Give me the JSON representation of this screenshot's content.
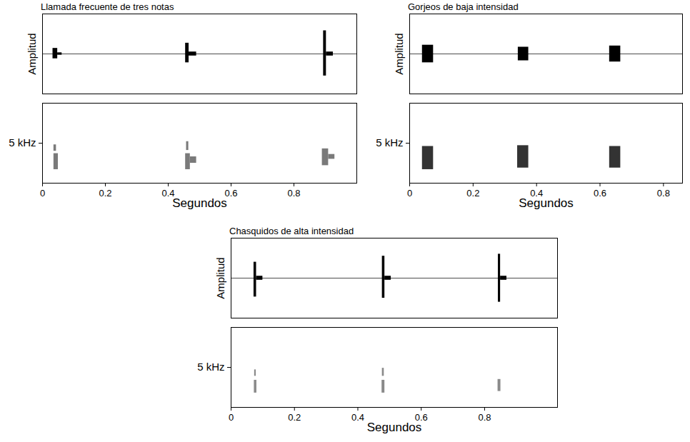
{
  "chart_data": [
    {
      "type": "waveform_spectrogram",
      "title": "Llamada frecuente de tres notas",
      "x_label": "Segundos",
      "xlim": [
        0,
        1.0
      ],
      "xticks": [
        0,
        0.2,
        0.4,
        0.6,
        0.8
      ],
      "waveform": {
        "y_label": "Amplitud",
        "ylim": [
          -1,
          1
        ],
        "tick_labels": false,
        "baseline": 0,
        "color": "#000000",
        "bursts": [
          {
            "start": 0.033,
            "end": 0.048,
            "max": 0.14,
            "min": -0.12
          },
          {
            "start": 0.048,
            "end": 0.062,
            "max": 0.03,
            "min": -0.03
          },
          {
            "start": 0.455,
            "end": 0.466,
            "max": 0.27,
            "min": -0.22
          },
          {
            "start": 0.466,
            "end": 0.49,
            "max": 0.05,
            "min": -0.05
          },
          {
            "start": 0.894,
            "end": 0.903,
            "max": 0.58,
            "min": -0.55
          },
          {
            "start": 0.903,
            "end": 0.925,
            "max": 0.05,
            "min": -0.05
          }
        ]
      },
      "spectrogram": {
        "ylim": [
          0,
          10
        ],
        "yticks": [
          {
            "value": 5,
            "label": "5 kHz"
          }
        ],
        "color": "#7a7a7a",
        "blobs": [
          {
            "start": 0.036,
            "end": 0.05,
            "freq_low": 1.7,
            "freq_high": 3.7
          },
          {
            "start": 0.036,
            "end": 0.044,
            "freq_low": 4.0,
            "freq_high": 4.8
          },
          {
            "start": 0.455,
            "end": 0.47,
            "freq_low": 1.7,
            "freq_high": 3.7
          },
          {
            "start": 0.47,
            "end": 0.49,
            "freq_low": 2.5,
            "freq_high": 3.3
          },
          {
            "start": 0.458,
            "end": 0.465,
            "freq_low": 4.1,
            "freq_high": 5.2
          },
          {
            "start": 0.89,
            "end": 0.91,
            "freq_low": 2.2,
            "freq_high": 4.3
          },
          {
            "start": 0.91,
            "end": 0.93,
            "freq_low": 3.0,
            "freq_high": 3.6
          }
        ]
      }
    },
    {
      "type": "waveform_spectrogram",
      "title": "Gorjeos de baja intensidad",
      "x_label": "Segundos",
      "xlim": [
        0,
        0.86
      ],
      "xticks": [
        0,
        0.2,
        0.4,
        0.6,
        0.8
      ],
      "waveform": {
        "y_label": "Amplitud",
        "ylim": [
          -1,
          1
        ],
        "tick_labels": false,
        "baseline": 0,
        "color": "#000000",
        "bursts": [
          {
            "start": 0.04,
            "end": 0.075,
            "max": 0.22,
            "min": -0.22
          },
          {
            "start": 0.342,
            "end": 0.375,
            "max": 0.17,
            "min": -0.17
          },
          {
            "start": 0.63,
            "end": 0.665,
            "max": 0.2,
            "min": -0.2
          }
        ]
      },
      "spectrogram": {
        "ylim": [
          0,
          10
        ],
        "yticks": [
          {
            "value": 5,
            "label": "5 kHz"
          }
        ],
        "color": "#333333",
        "blobs": [
          {
            "start": 0.04,
            "end": 0.075,
            "freq_low": 1.7,
            "freq_high": 4.6
          },
          {
            "start": 0.34,
            "end": 0.375,
            "freq_low": 1.9,
            "freq_high": 4.7
          },
          {
            "start": 0.63,
            "end": 0.665,
            "freq_low": 1.9,
            "freq_high": 4.6
          }
        ]
      }
    },
    {
      "type": "waveform_spectrogram",
      "title": "Chasquidos de alta intensidad",
      "x_label": "Segundos",
      "xlim": [
        0,
        1.03
      ],
      "xticks": [
        0,
        0.2,
        0.4,
        0.6,
        0.8
      ],
      "waveform": {
        "y_label": "Amplitud",
        "ylim": [
          -1,
          1
        ],
        "tick_labels": false,
        "baseline": 0,
        "color": "#000000",
        "bursts": [
          {
            "start": 0.072,
            "end": 0.08,
            "max": 0.4,
            "min": -0.47
          },
          {
            "start": 0.08,
            "end": 0.1,
            "max": 0.05,
            "min": -0.05
          },
          {
            "start": 0.477,
            "end": 0.485,
            "max": 0.55,
            "min": -0.5
          },
          {
            "start": 0.485,
            "end": 0.505,
            "max": 0.05,
            "min": -0.05
          },
          {
            "start": 0.843,
            "end": 0.85,
            "max": 0.6,
            "min": -0.6
          },
          {
            "start": 0.85,
            "end": 0.87,
            "max": 0.05,
            "min": -0.05
          }
        ]
      },
      "spectrogram": {
        "ylim": [
          0,
          10
        ],
        "yticks": [
          {
            "value": 5,
            "label": "5 kHz"
          }
        ],
        "color": "#8a8a8a",
        "blobs": [
          {
            "start": 0.073,
            "end": 0.081,
            "freq_low": 1.8,
            "freq_high": 3.4
          },
          {
            "start": 0.074,
            "end": 0.079,
            "freq_low": 3.9,
            "freq_high": 4.7
          },
          {
            "start": 0.476,
            "end": 0.485,
            "freq_low": 1.8,
            "freq_high": 3.4
          },
          {
            "start": 0.477,
            "end": 0.483,
            "freq_low": 3.9,
            "freq_high": 4.9
          },
          {
            "start": 0.842,
            "end": 0.851,
            "freq_low": 2.0,
            "freq_high": 3.5
          }
        ]
      }
    }
  ]
}
